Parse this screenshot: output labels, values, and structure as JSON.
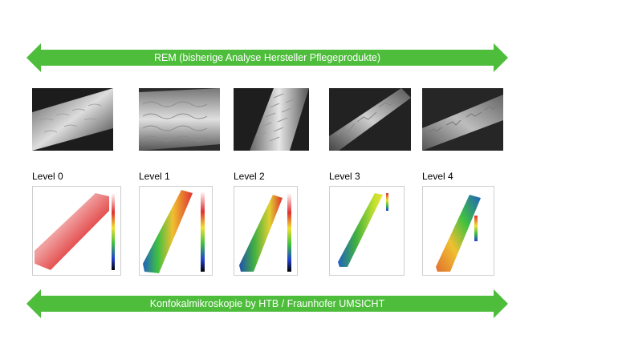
{
  "top_arrow": {
    "label": "REM (bisherige Analyse Hersteller Pflegeprodukte)",
    "color": "#4dbd3b"
  },
  "bottom_arrow": {
    "label": "Konfokalmikroskopie by HTB / Fraunhofer UMSICHT",
    "color": "#4dbd3b"
  },
  "levels": [
    {
      "label": "Level 0"
    },
    {
      "label": "Level 1"
    },
    {
      "label": "Level 2"
    },
    {
      "label": "Level 3"
    },
    {
      "label": "Level 4"
    }
  ]
}
